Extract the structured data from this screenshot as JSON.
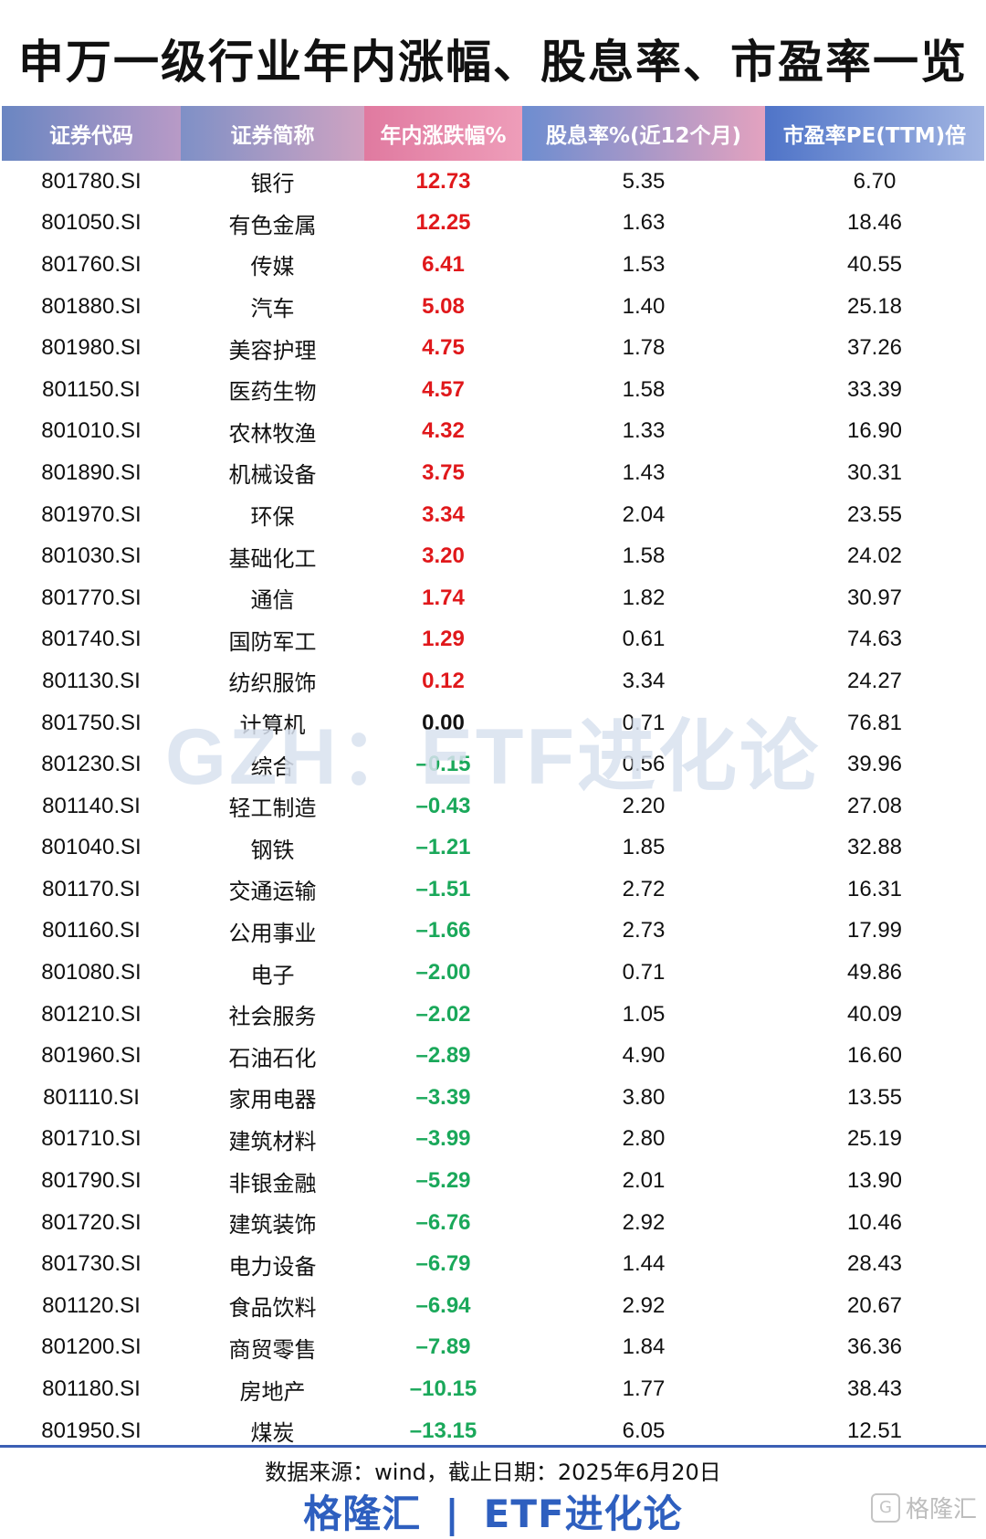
{
  "title": "申万一级行业年内涨幅、股息率、市盈率一览",
  "table": {
    "headers": [
      "证券代码",
      "证券简称",
      "年内涨跌幅%",
      "股息率%(近12个月)",
      "市盈率PE(TTM)倍"
    ],
    "rows": [
      {
        "code": "801780.SI",
        "name": "银行",
        "chg": "12.73",
        "div": "5.35",
        "pe": "6.70",
        "sign": "pos"
      },
      {
        "code": "801050.SI",
        "name": "有色金属",
        "chg": "12.25",
        "div": "1.63",
        "pe": "18.46",
        "sign": "pos"
      },
      {
        "code": "801760.SI",
        "name": "传媒",
        "chg": "6.41",
        "div": "1.53",
        "pe": "40.55",
        "sign": "pos"
      },
      {
        "code": "801880.SI",
        "name": "汽车",
        "chg": "5.08",
        "div": "1.40",
        "pe": "25.18",
        "sign": "pos"
      },
      {
        "code": "801980.SI",
        "name": "美容护理",
        "chg": "4.75",
        "div": "1.78",
        "pe": "37.26",
        "sign": "pos"
      },
      {
        "code": "801150.SI",
        "name": "医药生物",
        "chg": "4.57",
        "div": "1.58",
        "pe": "33.39",
        "sign": "pos"
      },
      {
        "code": "801010.SI",
        "name": "农林牧渔",
        "chg": "4.32",
        "div": "1.33",
        "pe": "16.90",
        "sign": "pos"
      },
      {
        "code": "801890.SI",
        "name": "机械设备",
        "chg": "3.75",
        "div": "1.43",
        "pe": "30.31",
        "sign": "pos"
      },
      {
        "code": "801970.SI",
        "name": "环保",
        "chg": "3.34",
        "div": "2.04",
        "pe": "23.55",
        "sign": "pos"
      },
      {
        "code": "801030.SI",
        "name": "基础化工",
        "chg": "3.20",
        "div": "1.58",
        "pe": "24.02",
        "sign": "pos"
      },
      {
        "code": "801770.SI",
        "name": "通信",
        "chg": "1.74",
        "div": "1.82",
        "pe": "30.97",
        "sign": "pos"
      },
      {
        "code": "801740.SI",
        "name": "国防军工",
        "chg": "1.29",
        "div": "0.61",
        "pe": "74.63",
        "sign": "pos"
      },
      {
        "code": "801130.SI",
        "name": "纺织服饰",
        "chg": "0.12",
        "div": "3.34",
        "pe": "24.27",
        "sign": "pos"
      },
      {
        "code": "801750.SI",
        "name": "计算机",
        "chg": "0.00",
        "div": "0.71",
        "pe": "76.81",
        "sign": "zero"
      },
      {
        "code": "801230.SI",
        "name": "综合",
        "chg": "–0.15",
        "div": "0.56",
        "pe": "39.96",
        "sign": "neg"
      },
      {
        "code": "801140.SI",
        "name": "轻工制造",
        "chg": "–0.43",
        "div": "2.20",
        "pe": "27.08",
        "sign": "neg"
      },
      {
        "code": "801040.SI",
        "name": "钢铁",
        "chg": "–1.21",
        "div": "1.85",
        "pe": "32.88",
        "sign": "neg"
      },
      {
        "code": "801170.SI",
        "name": "交通运输",
        "chg": "–1.51",
        "div": "2.72",
        "pe": "16.31",
        "sign": "neg"
      },
      {
        "code": "801160.SI",
        "name": "公用事业",
        "chg": "–1.66",
        "div": "2.73",
        "pe": "17.99",
        "sign": "neg"
      },
      {
        "code": "801080.SI",
        "name": "电子",
        "chg": "–2.00",
        "div": "0.71",
        "pe": "49.86",
        "sign": "neg"
      },
      {
        "code": "801210.SI",
        "name": "社会服务",
        "chg": "–2.02",
        "div": "1.05",
        "pe": "40.09",
        "sign": "neg"
      },
      {
        "code": "801960.SI",
        "name": "石油石化",
        "chg": "–2.89",
        "div": "4.90",
        "pe": "16.60",
        "sign": "neg"
      },
      {
        "code": "801110.SI",
        "name": "家用电器",
        "chg": "–3.39",
        "div": "3.80",
        "pe": "13.55",
        "sign": "neg"
      },
      {
        "code": "801710.SI",
        "name": "建筑材料",
        "chg": "–3.99",
        "div": "2.80",
        "pe": "25.19",
        "sign": "neg"
      },
      {
        "code": "801790.SI",
        "name": "非银金融",
        "chg": "–5.29",
        "div": "2.01",
        "pe": "13.90",
        "sign": "neg"
      },
      {
        "code": "801720.SI",
        "name": "建筑装饰",
        "chg": "–6.76",
        "div": "2.92",
        "pe": "10.46",
        "sign": "neg"
      },
      {
        "code": "801730.SI",
        "name": "电力设备",
        "chg": "–6.79",
        "div": "1.44",
        "pe": "28.43",
        "sign": "neg"
      },
      {
        "code": "801120.SI",
        "name": "食品饮料",
        "chg": "–6.94",
        "div": "2.92",
        "pe": "20.67",
        "sign": "neg"
      },
      {
        "code": "801200.SI",
        "name": "商贸零售",
        "chg": "–7.89",
        "div": "1.84",
        "pe": "36.36",
        "sign": "neg"
      },
      {
        "code": "801180.SI",
        "name": "房地产",
        "chg": "–10.15",
        "div": "1.77",
        "pe": "38.43",
        "sign": "neg"
      },
      {
        "code": "801950.SI",
        "name": "煤炭",
        "chg": "–13.15",
        "div": "6.05",
        "pe": "12.51",
        "sign": "neg"
      }
    ]
  },
  "watermark": "GZH：ETF进化论",
  "source": "数据来源：wind，截止日期：2025年6月20日",
  "brand": {
    "left": "格隆汇",
    "sep": "|",
    "right": "ETF进化论"
  },
  "corner_logo": {
    "mark": "G",
    "text": "格隆汇"
  },
  "colors": {
    "positive": "#e0181b",
    "negative": "#1aa85a",
    "brand": "#2e5fbf"
  }
}
